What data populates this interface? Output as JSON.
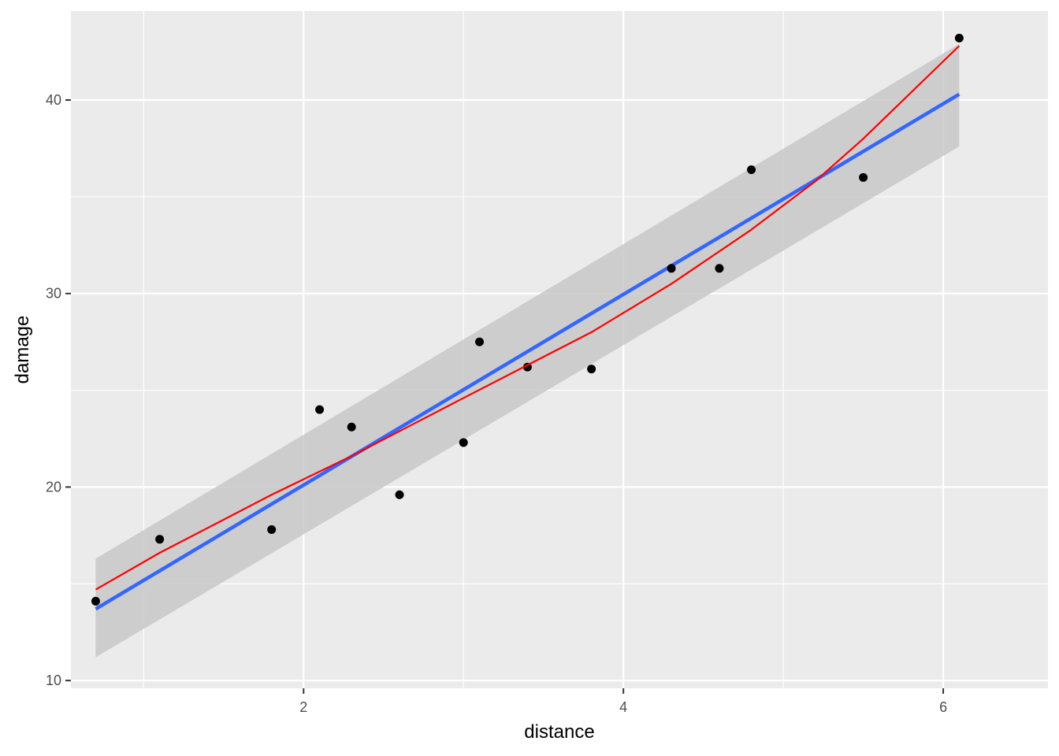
{
  "chart_data": {
    "type": "scatter",
    "title": "",
    "xlabel": "distance",
    "ylabel": "damage",
    "xlim": [
      0.545,
      6.655
    ],
    "ylim": [
      9.6,
      44.6
    ],
    "x_ticks": [
      2,
      4,
      6
    ],
    "x_minor_ticks": [
      1,
      3,
      5
    ],
    "y_ticks": [
      10,
      20,
      30,
      40
    ],
    "y_minor_ticks": [
      15,
      25,
      35
    ],
    "grid": true,
    "legend": "none",
    "points": {
      "x": [
        0.7,
        1.1,
        1.8,
        2.1,
        2.3,
        2.6,
        3.0,
        3.1,
        3.4,
        3.8,
        4.3,
        4.6,
        4.8,
        5.5,
        6.1
      ],
      "y": [
        14.1,
        17.3,
        17.8,
        24.0,
        23.1,
        19.6,
        22.3,
        27.5,
        26.2,
        26.1,
        31.3,
        31.3,
        36.4,
        36.0,
        43.2
      ]
    },
    "linear_fit": {
      "x": [
        0.7,
        6.1
      ],
      "y": [
        13.7,
        40.3
      ],
      "ci_lower": [
        11.2,
        37.6
      ],
      "ci_upper": [
        16.3,
        42.9
      ]
    },
    "smooth_fit": {
      "x": [
        0.7,
        1.1,
        1.8,
        2.3,
        3.0,
        3.4,
        3.8,
        4.3,
        4.8,
        5.2,
        5.5,
        6.1
      ],
      "y": [
        14.7,
        16.6,
        19.6,
        21.6,
        24.6,
        26.3,
        28.0,
        30.5,
        33.3,
        35.8,
        38.0,
        42.8
      ]
    },
    "colors": {
      "panel": "#ebebeb",
      "grid": "#ffffff",
      "points": "#000000",
      "linear_fit": "#3366ff",
      "confidence_band": "#c8c8c8",
      "smooth_fit": "#ff0000"
    }
  }
}
